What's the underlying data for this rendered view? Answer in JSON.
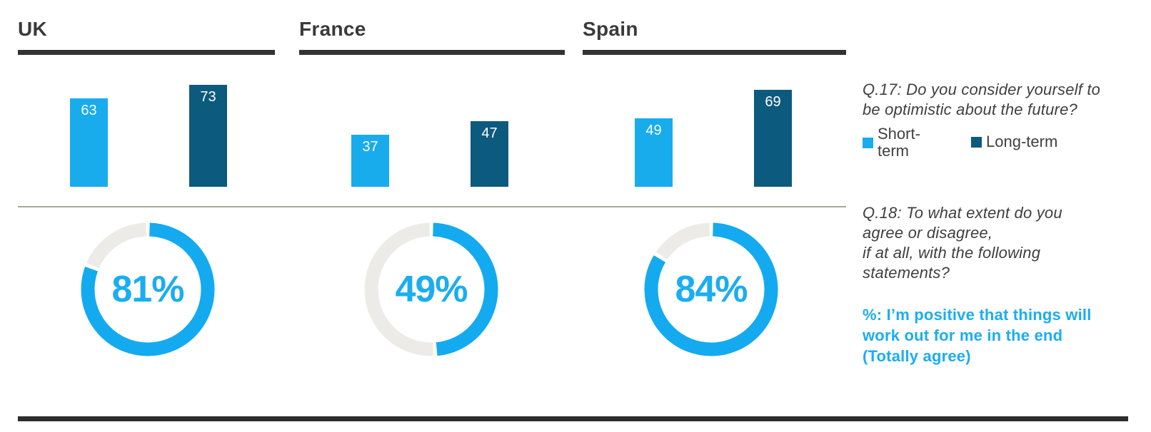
{
  "colors": {
    "light_blue": "#18acec",
    "dark_blue": "#0c5a7e",
    "donut_blue": "#14aaf0",
    "accent_text_blue": "#1badf2",
    "donut_track_gray": "#ecebe7",
    "divider_olive_gray": "#a9a897",
    "heading_dark_gray": "#3a3a3a",
    "rule_dark": "#333333"
  },
  "q17_text": "Q.17: Do you consider yourself to\nbe optimistic about the future?",
  "q18_text": "Q.18: To what extent do you\nagree or disagree,\nif at all, with the following\nstatements?",
  "statement_text": "%: I’m positive that things will\nwork out for me in the end\n(Totally agree)",
  "legend": {
    "short_label": "Short-\nterm",
    "long_label": "Long-term"
  },
  "countries": [
    {
      "name": "UK",
      "short_term": 63,
      "long_term": 73,
      "agree_pct": 81,
      "agree_label": "81%"
    },
    {
      "name": "France",
      "short_term": 37,
      "long_term": 47,
      "agree_pct": 49,
      "agree_label": "49%"
    },
    {
      "name": "Spain",
      "short_term": 49,
      "long_term": 69,
      "agree_pct": 84,
      "agree_label": "84%"
    }
  ],
  "chart_data": [
    {
      "type": "bar",
      "title": "Q.17: Do you consider yourself to be optimistic about the future?",
      "categories": [
        "UK",
        "France",
        "Spain"
      ],
      "series": [
        {
          "name": "Short-term",
          "values": [
            63,
            37,
            49
          ]
        },
        {
          "name": "Long-term",
          "values": [
            73,
            47,
            69
          ]
        }
      ],
      "ylim": [
        0,
        100
      ],
      "grid": false,
      "value_labels": true,
      "legend_position": "right"
    },
    {
      "type": "pie",
      "subtype": "donut",
      "title": "Q.18 — %: I’m positive that things will work out for me in the end (Totally agree)",
      "categories": [
        "UK",
        "France",
        "Spain"
      ],
      "values": [
        81,
        49,
        84
      ],
      "unit": "%",
      "center_labels": [
        "81%",
        "49%",
        "84%"
      ]
    }
  ]
}
